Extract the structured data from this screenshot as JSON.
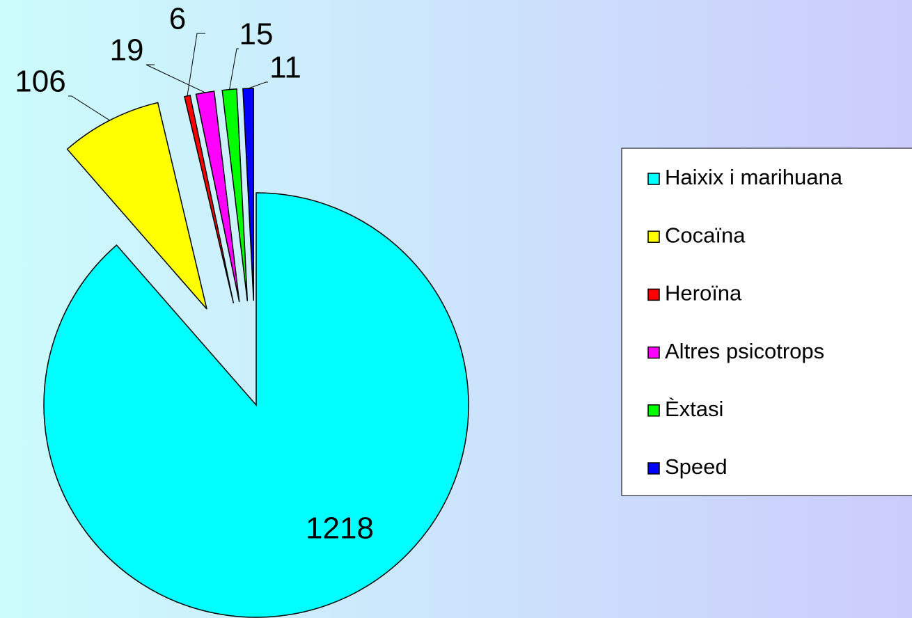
{
  "chart_data": {
    "type": "pie",
    "categories": [
      "Haixix i marihuana",
      "Cocaïna",
      "Heroïna",
      "Altres psicotrops",
      "Èxtasi",
      "Speed"
    ],
    "values": [
      1218,
      106,
      6,
      19,
      15,
      11
    ],
    "colors": [
      "#00ffff",
      "#ffff00",
      "#ff0000",
      "#ff00ff",
      "#00ff00",
      "#0000ff"
    ],
    "legend": "right"
  }
}
